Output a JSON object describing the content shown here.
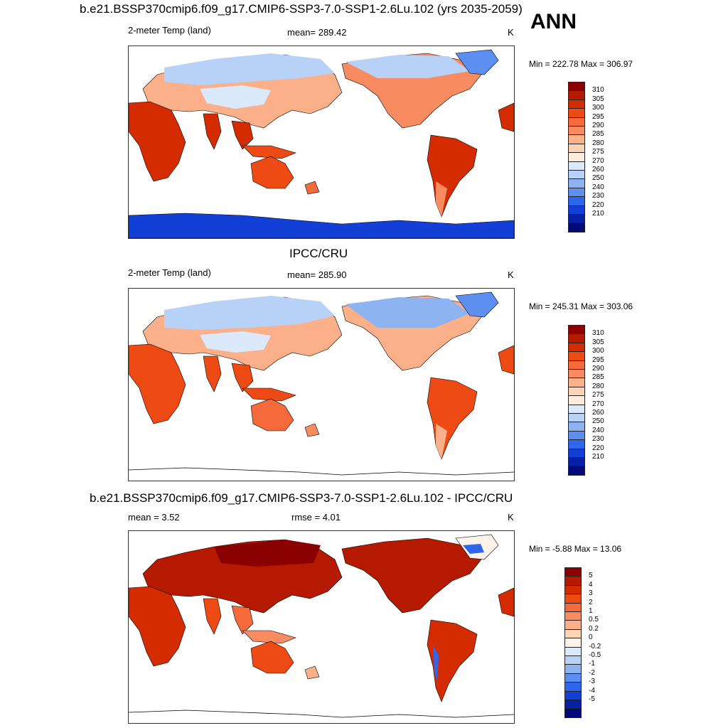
{
  "header": {
    "title": "b.e21.BSSP370cmip6.f09_g17.CMIP6-SSP3-7.0-SSP1-2.6Lu.102 (yrs 2035-2059)",
    "season": "ANN"
  },
  "panels": [
    {
      "title": "",
      "left_label": "2-meter Temp (land)",
      "center_label": "mean= 289.42",
      "right_label": "K",
      "minmax": "Min = 222.78 Max = 306.97",
      "colorbar_labels": [
        "310",
        "305",
        "300",
        "295",
        "290",
        "285",
        "280",
        "275",
        "270",
        "260",
        "250",
        "240",
        "230",
        "220",
        "210"
      ],
      "colorbar_colors": [
        "#8b0000",
        "#b51a00",
        "#d42b00",
        "#ee4a14",
        "#f56a3a",
        "#f88b5f",
        "#fbb08a",
        "#fdd3b6",
        "#fdecdc",
        "#dbe9fb",
        "#b8d1f7",
        "#8eb3f1",
        "#5c8ff0",
        "#2f66ee",
        "#1240d6",
        "#0620a8",
        "#000a78"
      ]
    },
    {
      "title": "IPCC/CRU",
      "left_label": "2-meter Temp (land)",
      "center_label": "mean= 285.90",
      "right_label": "K",
      "minmax": "Min = 245.31 Max = 303.06",
      "colorbar_labels": [
        "310",
        "305",
        "300",
        "295",
        "290",
        "285",
        "280",
        "275",
        "270",
        "260",
        "250",
        "240",
        "230",
        "220",
        "210"
      ],
      "colorbar_colors": [
        "#8b0000",
        "#b51a00",
        "#d42b00",
        "#ee4a14",
        "#f56a3a",
        "#f88b5f",
        "#fbb08a",
        "#fdd3b6",
        "#fdecdc",
        "#dbe9fb",
        "#b8d1f7",
        "#8eb3f1",
        "#5c8ff0",
        "#2f66ee",
        "#1240d6",
        "#0620a8",
        "#000a78"
      ]
    },
    {
      "title": "b.e21.BSSP370cmip6.f09_g17.CMIP6-SSP3-7.0-SSP1-2.6Lu.102 - IPCC/CRU",
      "left_label": "mean =   3.52",
      "center_label": "rmse =   4.01",
      "right_label": "K",
      "minmax": "Min =  -5.88 Max =  13.06",
      "colorbar_labels": [
        "5",
        "4",
        "3",
        "2",
        "1",
        "0.5",
        "0.2",
        "0",
        "-0.2",
        "-0.5",
        "-1",
        "-2",
        "-3",
        "-4",
        "-5"
      ],
      "colorbar_colors": [
        "#8b0000",
        "#b51a00",
        "#d42b00",
        "#ee4a14",
        "#f56a3a",
        "#f88b5f",
        "#fbb08a",
        "#fdd3b6",
        "#fdf3ea",
        "#dbe9fb",
        "#b8d1f7",
        "#8eb3f1",
        "#5c8ff0",
        "#2f66ee",
        "#1240d6",
        "#0620a8",
        "#000a78"
      ]
    }
  ],
  "colors": {
    "ocean": "#ffffff",
    "coast": "#000000"
  }
}
